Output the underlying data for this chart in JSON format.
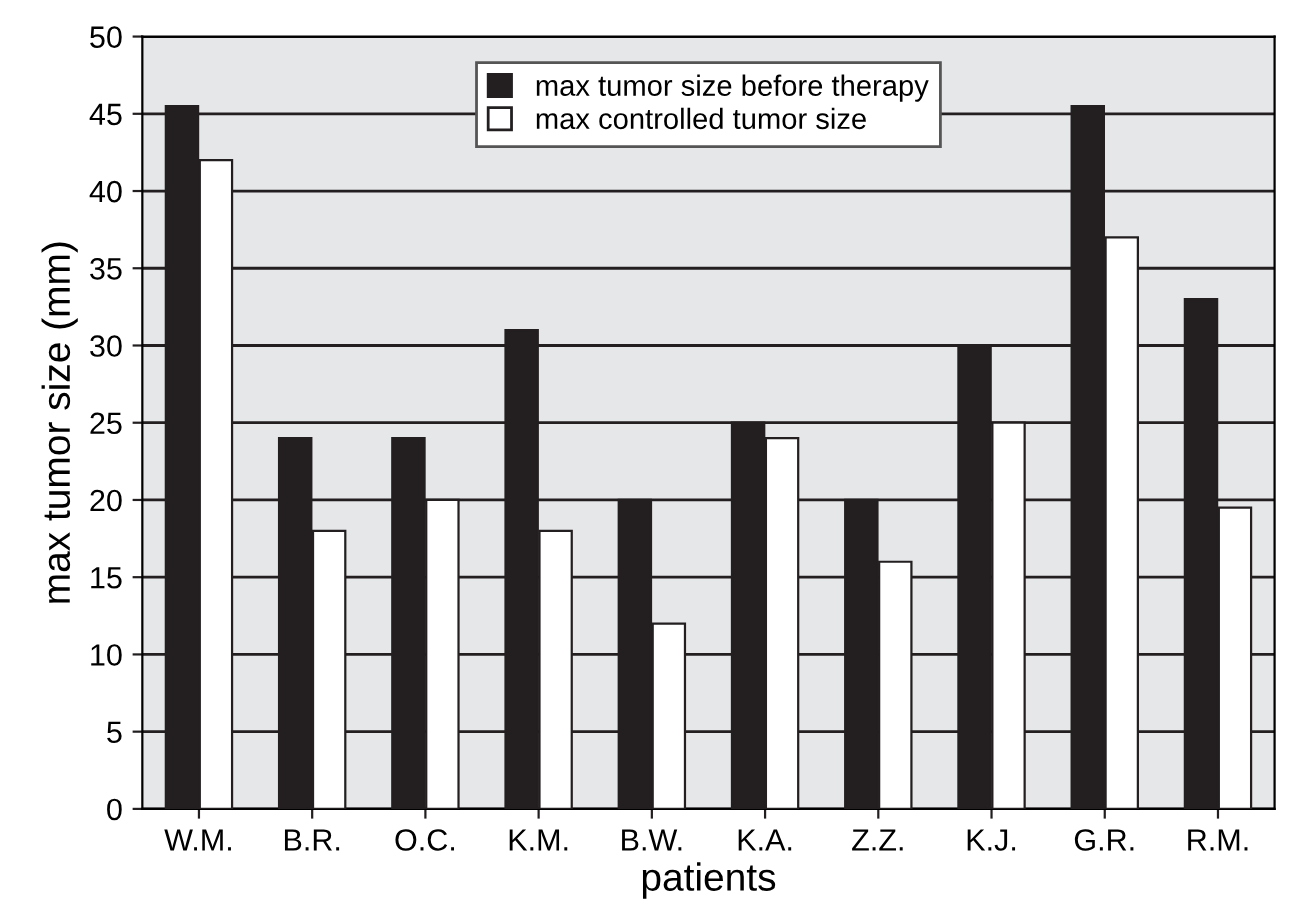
{
  "chart_data": {
    "type": "bar",
    "xlabel": "patients",
    "ylabel": "max tumor size (mm)",
    "categories": [
      "W.M.",
      "B.R.",
      "O.C.",
      "K.M.",
      "B.W.",
      "K.A.",
      "Z.Z.",
      "K.J.",
      "G.R.",
      "R.M."
    ],
    "series": [
      {
        "name": "max tumor size before therapy",
        "color": "#231f20",
        "values": [
          45.5,
          24,
          24,
          31,
          20,
          25,
          20,
          30,
          45.5,
          33
        ]
      },
      {
        "name": "max controlled tumor size",
        "color": "#ffffff",
        "values": [
          42,
          18,
          20,
          18,
          12,
          24,
          16,
          25,
          37,
          19.5
        ]
      }
    ],
    "ylim": [
      0,
      50
    ],
    "yticks": [
      0,
      5,
      10,
      15,
      20,
      25,
      30,
      35,
      40,
      45,
      50
    ],
    "grid": "y",
    "legend": "top"
  }
}
